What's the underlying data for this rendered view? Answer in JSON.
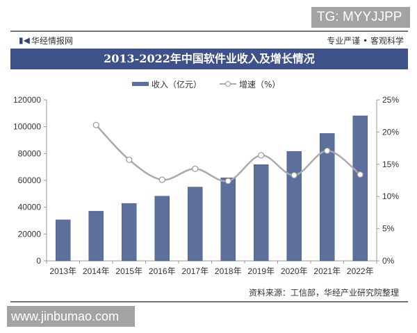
{
  "watermark_top": "TG: MYYJJPP",
  "watermark_bottom": "www.jinbumao.com",
  "brand": {
    "logo_icon": "huajing-logo-icon",
    "name": "华经情报网",
    "slogan": "专业严谨 • 客观科学"
  },
  "source_note": "资料来源：工信部，华经产业研究院整理",
  "colors": {
    "title_bar": "#3e5289",
    "bar": "#5d6f9c",
    "line": "#aaaaaa"
  },
  "chart_data": {
    "type": "bar+line",
    "title": "2013-2022年中国软件业收入及增长情况",
    "categories": [
      "2013年",
      "2014年",
      "2015年",
      "2016年",
      "2017年",
      "2018年",
      "2019年",
      "2020年",
      "2021年",
      "2022年"
    ],
    "series": [
      {
        "name": "收入（亿元）",
        "type": "bar",
        "axis": "left",
        "values": [
          30587,
          37026,
          42848,
          48232,
          55037,
          61909,
          71768,
          81616,
          94994,
          108126
        ]
      },
      {
        "name": "增速（%）",
        "type": "line",
        "axis": "right",
        "values": [
          null,
          21.1,
          15.7,
          12.6,
          14.3,
          12.4,
          16.4,
          13.3,
          17.1,
          13.4
        ]
      }
    ],
    "y_left": {
      "ticks": [
        "0",
        "20000",
        "40000",
        "60000",
        "80000",
        "100000",
        "120000"
      ],
      "ylim": [
        0,
        120000
      ]
    },
    "y_right": {
      "ticks": [
        "0%",
        "5%",
        "10%",
        "15%",
        "20%",
        "25%"
      ],
      "ylim": [
        0,
        25
      ]
    },
    "xlabel": "",
    "ylabel": "",
    "legend": {
      "position": "top",
      "items": [
        "收入（亿元）",
        "增速（%）"
      ]
    },
    "grid": false
  }
}
